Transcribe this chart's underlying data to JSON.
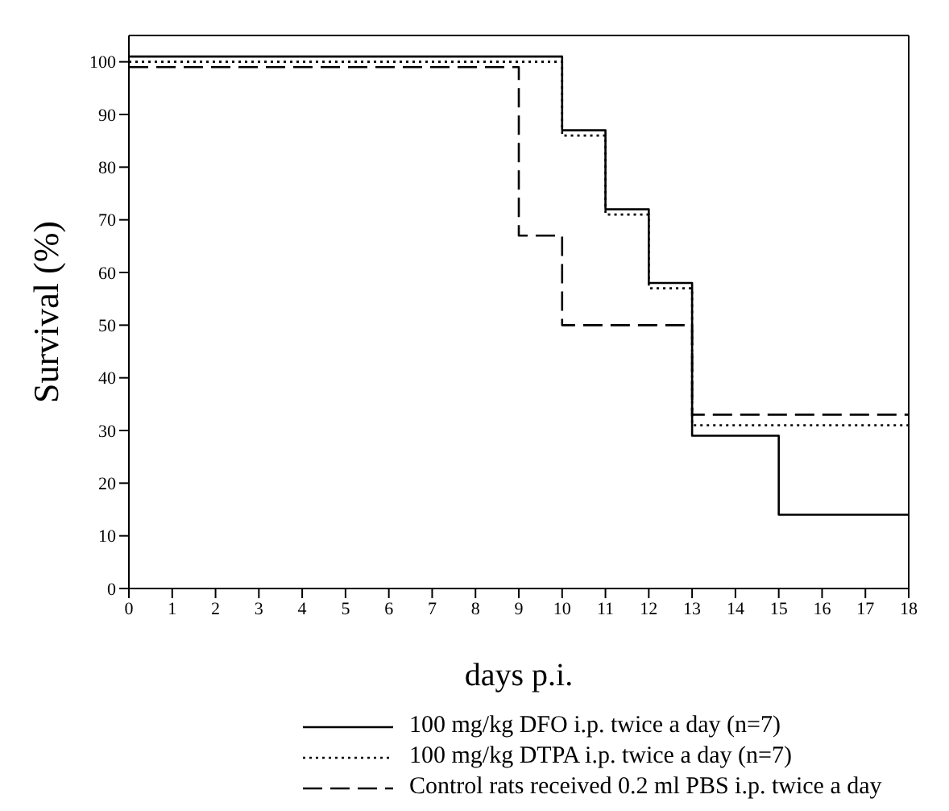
{
  "chart_data": {
    "type": "step",
    "xlabel": "days p.i.",
    "ylabel": "Survival (%)",
    "xlim": [
      0,
      18
    ],
    "xticks": [
      0,
      1,
      2,
      3,
      4,
      5,
      6,
      7,
      8,
      9,
      10,
      11,
      12,
      13,
      14,
      15,
      16,
      17,
      18
    ],
    "ylim": [
      0,
      105
    ],
    "yticks": [
      0,
      10,
      20,
      30,
      40,
      50,
      60,
      70,
      80,
      90,
      100
    ],
    "grid": false,
    "legend": "bottom",
    "series": [
      {
        "name": "100 mg/kg DFO i.p. twice a day (n=7)",
        "color": "#000000",
        "line_style": "solid",
        "x": [
          0,
          10,
          11,
          12,
          13,
          15,
          18
        ],
        "values": [
          101,
          87,
          72,
          58,
          29,
          14,
          14
        ]
      },
      {
        "name": "100 mg/kg DTPA i.p. twice a day (n=7)",
        "color": "#000000",
        "line_style": "dotted",
        "x": [
          0,
          10,
          11,
          12,
          13,
          18
        ],
        "values": [
          100,
          86,
          71,
          57,
          31,
          31
        ]
      },
      {
        "name": "Control rats received 0.2 ml PBS i.p. twice a day",
        "color": "#000000",
        "line_style": "dashed",
        "x": [
          0,
          9,
          10,
          13,
          18
        ],
        "values": [
          99,
          67,
          50,
          33,
          33
        ]
      }
    ]
  }
}
